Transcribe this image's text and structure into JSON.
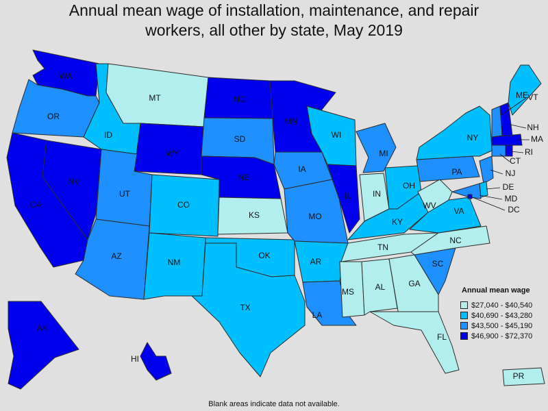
{
  "title_line1": "Annual mean wage of installation, maintenance, and repair",
  "title_line2": "workers, all other by state, May 2019",
  "legend": {
    "title": "Annual mean wage",
    "items": [
      {
        "label": "$27,040 - $40,540",
        "color": "#b2eeee"
      },
      {
        "label": "$40,690 - $43,280",
        "color": "#00bfff"
      },
      {
        "label": "$43,500 - $45,190",
        "color": "#1e90ff"
      },
      {
        "label": "$46,900 - $72,370",
        "color": "#0000ee"
      }
    ]
  },
  "footnote": "Blank areas indicate data not available.",
  "states": [
    {
      "abbr": "WA",
      "tier": 3
    },
    {
      "abbr": "OR",
      "tier": 2
    },
    {
      "abbr": "CA",
      "tier": 3
    },
    {
      "abbr": "NV",
      "tier": 3
    },
    {
      "abbr": "ID",
      "tier": 1
    },
    {
      "abbr": "MT",
      "tier": 0
    },
    {
      "abbr": "WY",
      "tier": 3
    },
    {
      "abbr": "UT",
      "tier": 2
    },
    {
      "abbr": "AZ",
      "tier": 2
    },
    {
      "abbr": "CO",
      "tier": 1
    },
    {
      "abbr": "NM",
      "tier": 1
    },
    {
      "abbr": "ND",
      "tier": 3
    },
    {
      "abbr": "SD",
      "tier": 2
    },
    {
      "abbr": "NE",
      "tier": 3
    },
    {
      "abbr": "KS",
      "tier": 0
    },
    {
      "abbr": "OK",
      "tier": 1
    },
    {
      "abbr": "TX",
      "tier": 1
    },
    {
      "abbr": "MN",
      "tier": 3
    },
    {
      "abbr": "IA",
      "tier": 2
    },
    {
      "abbr": "MO",
      "tier": 2
    },
    {
      "abbr": "AR",
      "tier": 1
    },
    {
      "abbr": "LA",
      "tier": 2
    },
    {
      "abbr": "WI",
      "tier": 1
    },
    {
      "abbr": "IL",
      "tier": 3
    },
    {
      "abbr": "MI",
      "tier": 2
    },
    {
      "abbr": "IN",
      "tier": 0
    },
    {
      "abbr": "OH",
      "tier": 1
    },
    {
      "abbr": "KY",
      "tier": 1
    },
    {
      "abbr": "TN",
      "tier": 0
    },
    {
      "abbr": "MS",
      "tier": 0
    },
    {
      "abbr": "AL",
      "tier": 0
    },
    {
      "abbr": "GA",
      "tier": 0
    },
    {
      "abbr": "FL",
      "tier": 0
    },
    {
      "abbr": "SC",
      "tier": 2
    },
    {
      "abbr": "NC",
      "tier": 0
    },
    {
      "abbr": "VA",
      "tier": 1
    },
    {
      "abbr": "WV",
      "tier": 0
    },
    {
      "abbr": "PA",
      "tier": 2
    },
    {
      "abbr": "NY",
      "tier": 1
    },
    {
      "abbr": "NJ",
      "tier": 2
    },
    {
      "abbr": "DE",
      "tier": 1
    },
    {
      "abbr": "MD",
      "tier": 2
    },
    {
      "abbr": "DC",
      "tier": 3
    },
    {
      "abbr": "CT",
      "tier": 2
    },
    {
      "abbr": "RI",
      "tier": 3
    },
    {
      "abbr": "MA",
      "tier": 3
    },
    {
      "abbr": "VT",
      "tier": 2
    },
    {
      "abbr": "NH",
      "tier": 3
    },
    {
      "abbr": "ME",
      "tier": 1
    },
    {
      "abbr": "AK",
      "tier": 3
    },
    {
      "abbr": "HI",
      "tier": 3
    },
    {
      "abbr": "PR",
      "tier": 0
    }
  ]
}
